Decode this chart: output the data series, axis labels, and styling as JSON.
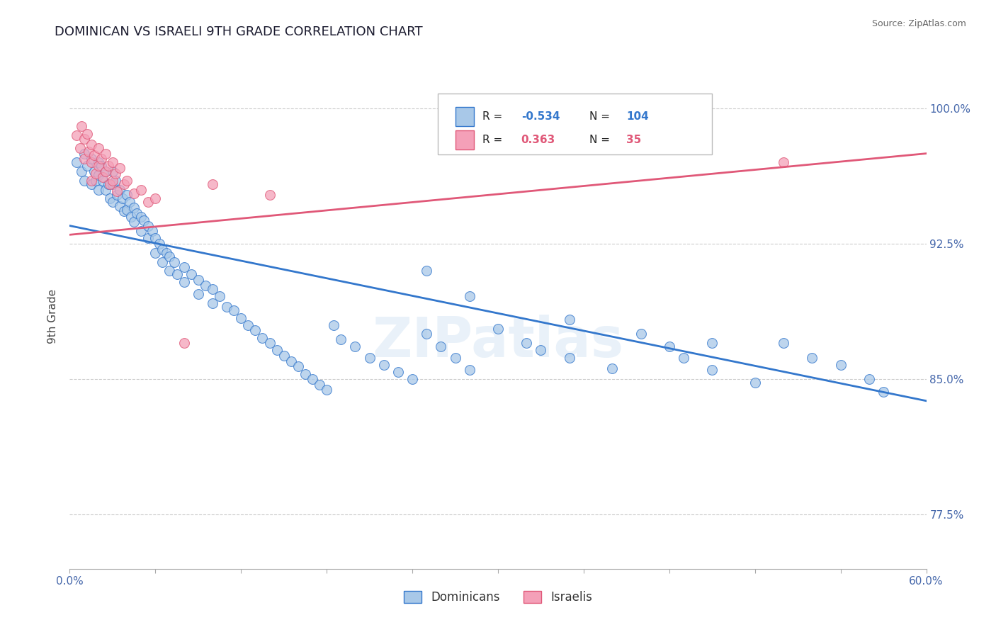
{
  "title": "DOMINICAN VS ISRAELI 9TH GRADE CORRELATION CHART",
  "source_text": "Source: ZipAtlas.com",
  "ylabel": "9th Grade",
  "xlim": [
    0.0,
    0.6
  ],
  "ylim": [
    0.745,
    1.025
  ],
  "legend_blue_r": "-0.534",
  "legend_blue_n": "104",
  "legend_pink_r": "0.363",
  "legend_pink_n": "35",
  "blue_color": "#a8c8e8",
  "pink_color": "#f4a0b8",
  "blue_line_color": "#3377cc",
  "pink_line_color": "#e05878",
  "background_color": "#ffffff",
  "grid_color": "#cccccc",
  "blue_line_x0": 0.0,
  "blue_line_y0": 0.935,
  "blue_line_x1": 0.6,
  "blue_line_y1": 0.838,
  "pink_line_x0": 0.0,
  "pink_line_y0": 0.93,
  "pink_line_x1": 0.6,
  "pink_line_y1": 0.975,
  "blue_dots_x": [
    0.005,
    0.008,
    0.01,
    0.01,
    0.012,
    0.015,
    0.015,
    0.017,
    0.018,
    0.02,
    0.02,
    0.02,
    0.022,
    0.023,
    0.025,
    0.025,
    0.027,
    0.028,
    0.03,
    0.03,
    0.03,
    0.032,
    0.033,
    0.035,
    0.035,
    0.037,
    0.038,
    0.04,
    0.04,
    0.042,
    0.043,
    0.045,
    0.045,
    0.047,
    0.05,
    0.05,
    0.052,
    0.055,
    0.055,
    0.058,
    0.06,
    0.06,
    0.063,
    0.065,
    0.065,
    0.068,
    0.07,
    0.07,
    0.073,
    0.075,
    0.08,
    0.08,
    0.085,
    0.09,
    0.09,
    0.095,
    0.1,
    0.1,
    0.105,
    0.11,
    0.115,
    0.12,
    0.125,
    0.13,
    0.135,
    0.14,
    0.145,
    0.15,
    0.155,
    0.16,
    0.165,
    0.17,
    0.175,
    0.18,
    0.185,
    0.19,
    0.2,
    0.21,
    0.22,
    0.23,
    0.24,
    0.25,
    0.26,
    0.27,
    0.28,
    0.3,
    0.32,
    0.33,
    0.35,
    0.38,
    0.4,
    0.42,
    0.43,
    0.45,
    0.48,
    0.5,
    0.52,
    0.54,
    0.56,
    0.57,
    0.25,
    0.28,
    0.35,
    0.45
  ],
  "blue_dots_y": [
    0.97,
    0.965,
    0.975,
    0.96,
    0.968,
    0.972,
    0.958,
    0.965,
    0.96,
    0.97,
    0.963,
    0.955,
    0.968,
    0.96,
    0.965,
    0.955,
    0.958,
    0.95,
    0.965,
    0.958,
    0.948,
    0.96,
    0.952,
    0.955,
    0.946,
    0.95,
    0.943,
    0.952,
    0.944,
    0.948,
    0.94,
    0.945,
    0.937,
    0.942,
    0.94,
    0.932,
    0.938,
    0.935,
    0.928,
    0.932,
    0.928,
    0.92,
    0.925,
    0.922,
    0.915,
    0.92,
    0.918,
    0.91,
    0.915,
    0.908,
    0.912,
    0.904,
    0.908,
    0.905,
    0.897,
    0.902,
    0.9,
    0.892,
    0.896,
    0.89,
    0.888,
    0.884,
    0.88,
    0.877,
    0.873,
    0.87,
    0.866,
    0.863,
    0.86,
    0.857,
    0.853,
    0.85,
    0.847,
    0.844,
    0.88,
    0.872,
    0.868,
    0.862,
    0.858,
    0.854,
    0.85,
    0.875,
    0.868,
    0.862,
    0.855,
    0.878,
    0.87,
    0.866,
    0.862,
    0.856,
    0.875,
    0.868,
    0.862,
    0.855,
    0.848,
    0.87,
    0.862,
    0.858,
    0.85,
    0.843,
    0.91,
    0.896,
    0.883,
    0.87
  ],
  "pink_dots_x": [
    0.005,
    0.007,
    0.008,
    0.01,
    0.01,
    0.012,
    0.013,
    0.015,
    0.015,
    0.015,
    0.017,
    0.018,
    0.02,
    0.02,
    0.022,
    0.023,
    0.025,
    0.025,
    0.027,
    0.028,
    0.03,
    0.03,
    0.032,
    0.033,
    0.035,
    0.038,
    0.04,
    0.045,
    0.05,
    0.055,
    0.06,
    0.08,
    0.1,
    0.14,
    0.5
  ],
  "pink_dots_y": [
    0.985,
    0.978,
    0.99,
    0.983,
    0.972,
    0.986,
    0.976,
    0.98,
    0.97,
    0.96,
    0.974,
    0.964,
    0.978,
    0.968,
    0.972,
    0.962,
    0.975,
    0.965,
    0.968,
    0.958,
    0.97,
    0.96,
    0.964,
    0.954,
    0.967,
    0.958,
    0.96,
    0.953,
    0.955,
    0.948,
    0.95,
    0.87,
    0.958,
    0.952,
    0.97
  ]
}
